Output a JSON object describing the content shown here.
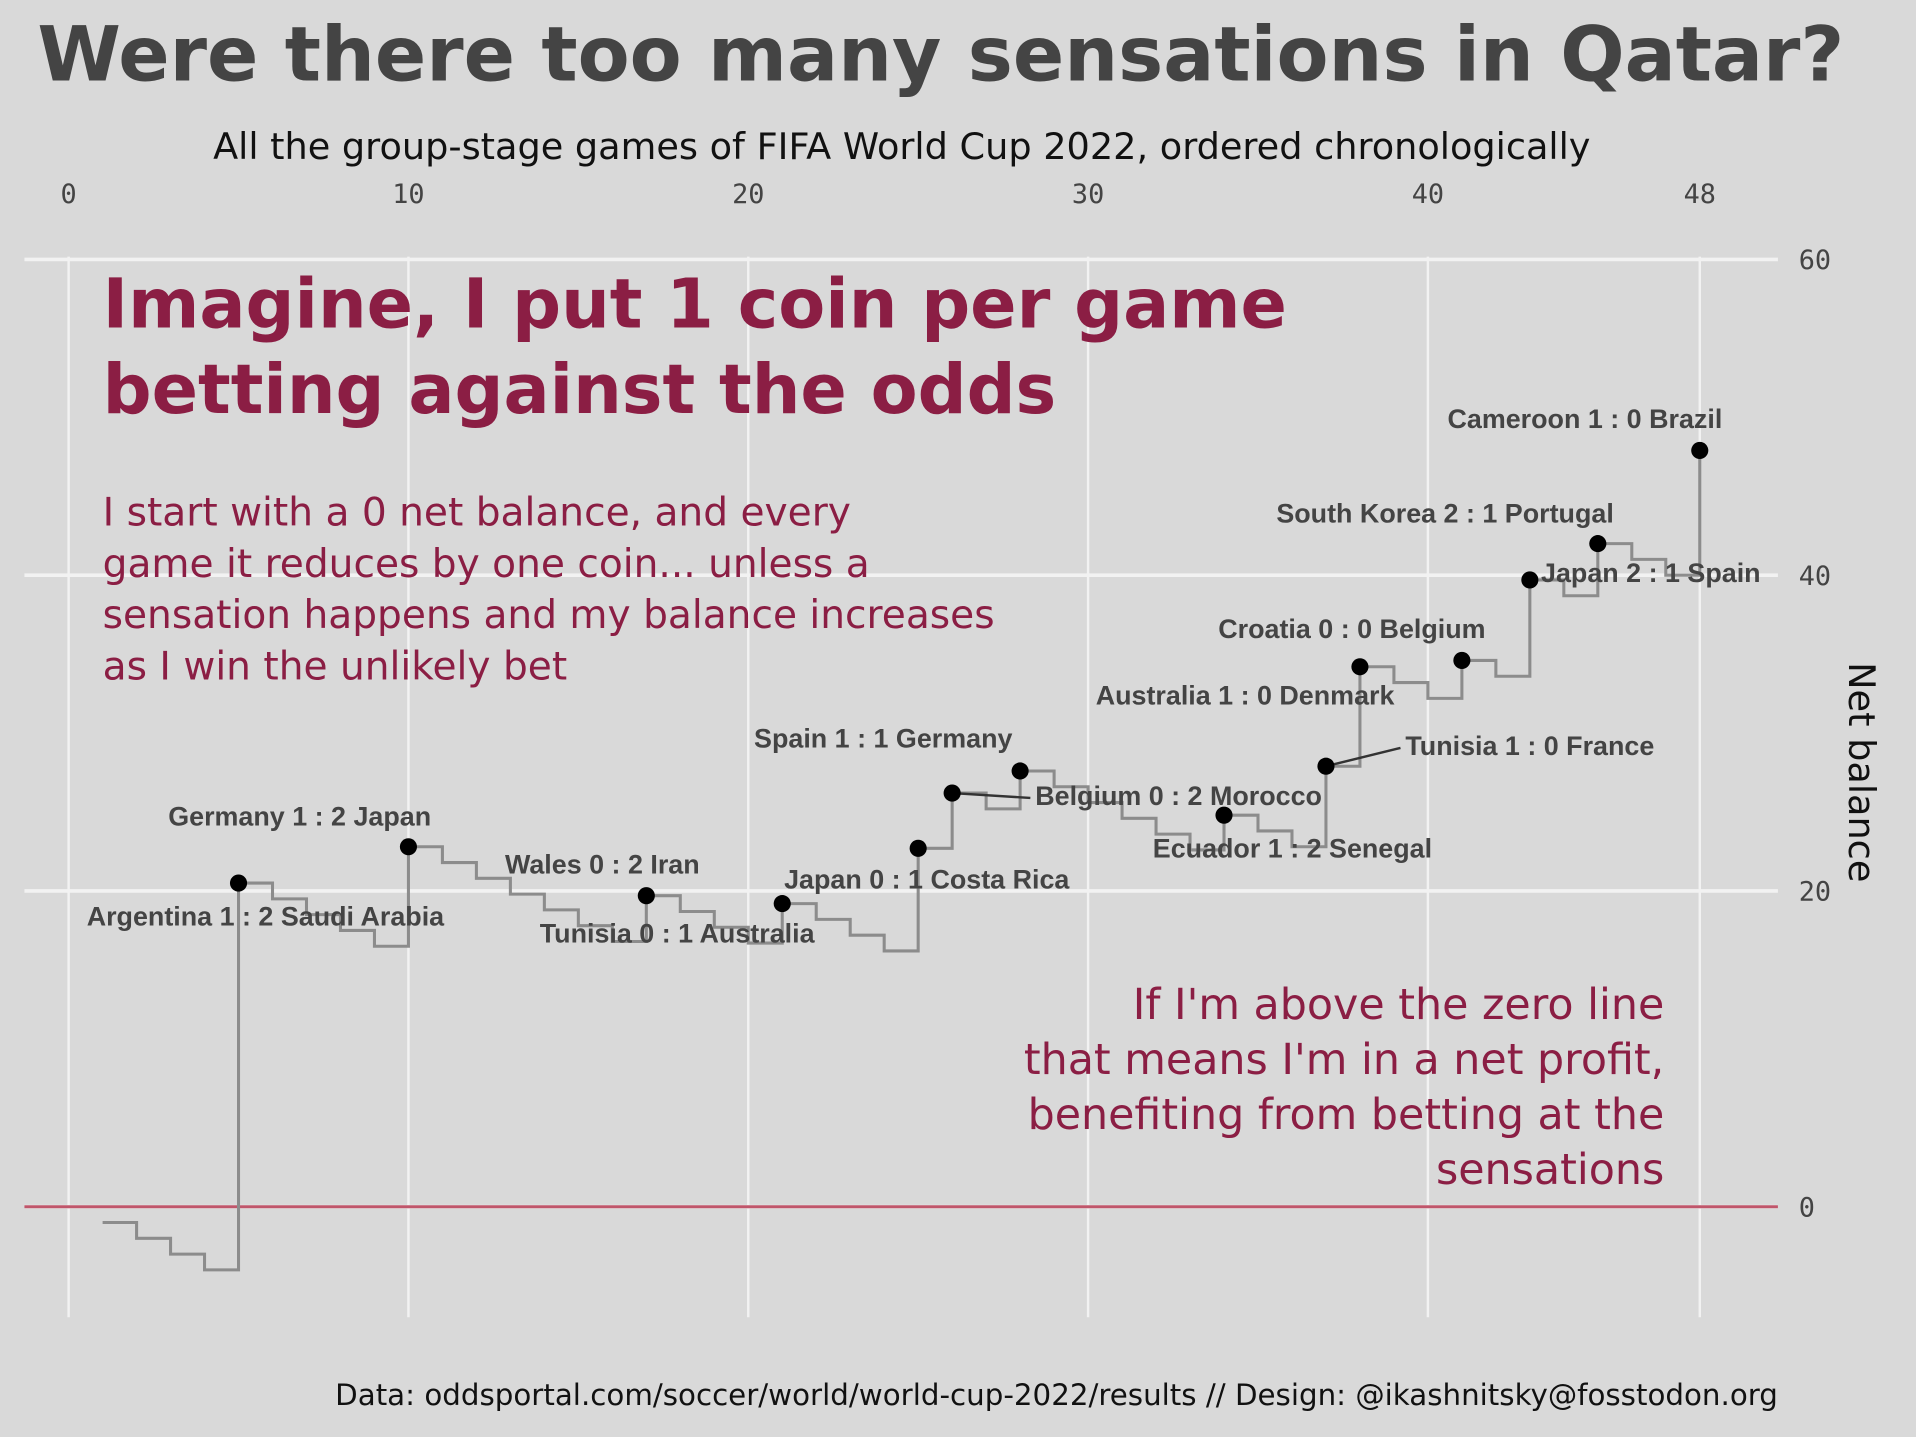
{
  "chart_data": {
    "type": "step",
    "title": "Were there too many sensations in Qatar?",
    "subtitle": "All the group-stage games of FIFA World Cup 2022, ordered chronologically",
    "headline": [
      "Imagine, I put 1 coin per game",
      "betting against the odds"
    ],
    "explanation": [
      "I start with a 0 net balance, and every",
      "game it reduces by one coin... unless a",
      "sensation happens and my balance increases",
      "as I win the unlikely bet"
    ],
    "profit_note": [
      "If I'm above the zero line",
      "that means I'm in a net profit,",
      "benefiting from betting at the",
      "sensations"
    ],
    "caption": "Data: oddsportal.com/soccer/world/world-cup-2022/results // Design: @ikashnitsky@fosstodon.org",
    "y_label": "Net balance",
    "x": [
      1,
      2,
      3,
      4,
      5,
      6,
      7,
      8,
      9,
      10,
      11,
      12,
      13,
      14,
      15,
      16,
      17,
      18,
      19,
      20,
      21,
      22,
      23,
      24,
      25,
      26,
      27,
      28,
      29,
      30,
      31,
      32,
      33,
      34,
      35,
      36,
      37,
      38,
      39,
      40,
      41,
      42,
      43,
      44,
      45,
      46,
      47,
      48
    ],
    "series": [
      {
        "color": "#8c8c8c",
        "values": [
          -1,
          -2,
          -3,
          -4,
          20.5,
          19.5,
          18.5,
          17.5,
          16.5,
          22.8,
          21.8,
          20.8,
          19.8,
          18.8,
          17.8,
          16.8,
          19.7,
          18.7,
          17.7,
          16.7,
          19.2,
          18.2,
          17.2,
          16.2,
          22.7,
          26.2,
          25.2,
          27.6,
          26.6,
          25.6,
          24.6,
          23.6,
          22.6,
          24.8,
          23.8,
          22.8,
          27.9,
          34.2,
          33.2,
          32.2,
          34.6,
          33.6,
          39.7,
          38.7,
          42.0,
          41.0,
          40.0,
          47.9
        ]
      }
    ],
    "sensations": [
      {
        "x": 5,
        "label": "Argentina 1 : 2 Saudi Arabia"
      },
      {
        "x": 10,
        "label": "Germany 1 : 2 Japan"
      },
      {
        "x": 17,
        "label": "Wales 0 : 2 Iran"
      },
      {
        "x": 21,
        "label": "Tunisia 0 : 1 Australia"
      },
      {
        "x": 25,
        "label": "Japan 0 : 1 Costa Rica"
      },
      {
        "x": 26,
        "label": "Belgium 0 : 2 Morocco"
      },
      {
        "x": 28,
        "label": "Spain 1 : 1 Germany"
      },
      {
        "x": 34,
        "label": "Ecuador 1 : 2 Senegal"
      },
      {
        "x": 37,
        "label": "Tunisia 1 : 0 France"
      },
      {
        "x": 38,
        "label": "Australia 1 : 0 Denmark"
      },
      {
        "x": 41,
        "label": "Croatia 0 : 0 Belgium"
      },
      {
        "x": 43,
        "label": "Japan 2 : 1 Spain"
      },
      {
        "x": 45,
        "label": "South Korea 2 : 1 Portugal"
      },
      {
        "x": 48,
        "label": "Cameroon 1 : 0 Brazil"
      }
    ],
    "point_color": "#000000",
    "zero_line_color": "#c0566b",
    "xlim": [
      -1.3,
      50.3
    ],
    "xticks": [
      0,
      10,
      20,
      30,
      40,
      48
    ],
    "ylim": [
      -7,
      62.5
    ],
    "yticks": [
      0,
      20,
      40,
      60
    ],
    "grid": true
  }
}
